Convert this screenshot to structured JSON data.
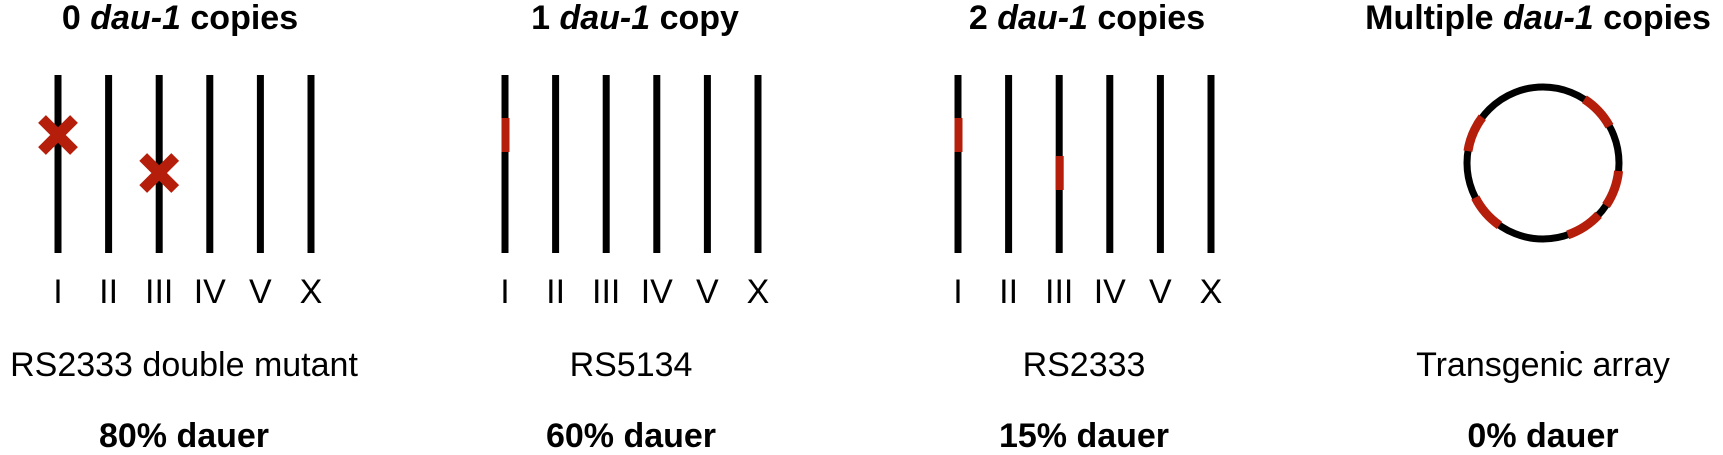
{
  "colors": {
    "chromosome": "#000000",
    "dau1": "#b41e0a"
  },
  "chromosome_labels": [
    "I",
    "II",
    "III",
    "IV",
    "V",
    "X"
  ],
  "panels": [
    {
      "title": {
        "count": "0",
        "gene": "dau-1",
        "suffix": "copies"
      },
      "diagram": "chromosomes",
      "deleted_on": [
        "I",
        "III"
      ],
      "copies_on": [],
      "strain": "RS2333 double mutant",
      "phenotype": "80% dauer"
    },
    {
      "title": {
        "count": "1",
        "gene": "dau-1",
        "suffix": "copy"
      },
      "diagram": "chromosomes",
      "deleted_on": [],
      "copies_on": [
        "I"
      ],
      "strain": "RS5134",
      "phenotype": "60% dauer"
    },
    {
      "title": {
        "count": "2",
        "gene": "dau-1",
        "suffix": "copies"
      },
      "diagram": "chromosomes",
      "deleted_on": [],
      "copies_on": [
        "I",
        "III"
      ],
      "strain": "RS2333",
      "phenotype": "15% dauer"
    },
    {
      "title": {
        "count": "Multiple",
        "gene": "dau-1",
        "suffix": "copies"
      },
      "diagram": "circular-array",
      "array_copies": 5,
      "strain": "Transgenic array",
      "phenotype": "0% dauer"
    }
  ]
}
